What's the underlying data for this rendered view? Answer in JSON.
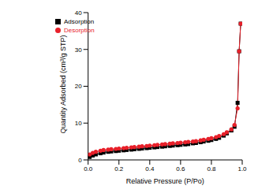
{
  "chart_data": {
    "type": "line",
    "x_label": "Relative Pressure (P/Po)",
    "y_label": "Quantity Adsorbed (cm³/g STP)",
    "x": [
      0.01,
      0.03,
      0.05,
      0.08,
      0.1,
      0.13,
      0.15,
      0.18,
      0.2,
      0.23,
      0.25,
      0.28,
      0.3,
      0.33,
      0.35,
      0.38,
      0.4,
      0.43,
      0.45,
      0.48,
      0.5,
      0.53,
      0.55,
      0.58,
      0.6,
      0.63,
      0.65,
      0.68,
      0.7,
      0.73,
      0.75,
      0.78,
      0.8,
      0.83,
      0.85,
      0.88,
      0.9,
      0.93,
      0.95,
      0.97,
      0.98,
      0.99
    ],
    "series": [
      {
        "name": "Adsorption",
        "color": "#000000",
        "marker": "square",
        "values": [
          0.8,
          1.2,
          1.5,
          1.8,
          2.0,
          2.2,
          2.3,
          2.4,
          2.5,
          2.6,
          2.7,
          2.8,
          2.9,
          3.0,
          3.1,
          3.2,
          3.3,
          3.4,
          3.5,
          3.6,
          3.7,
          3.8,
          3.9,
          4.0,
          4.1,
          4.2,
          4.3,
          4.5,
          4.6,
          4.8,
          5.0,
          5.2,
          5.4,
          5.7,
          6.0,
          6.6,
          7.2,
          8.0,
          9.0,
          15.5,
          29.5,
          37.0
        ]
      },
      {
        "name": "Desorption",
        "color": "#e8202a",
        "marker": "circle",
        "values": [
          1.5,
          1.9,
          2.2,
          2.5,
          2.7,
          2.8,
          2.9,
          3.0,
          3.1,
          3.2,
          3.3,
          3.4,
          3.5,
          3.6,
          3.7,
          3.8,
          3.9,
          4.0,
          4.1,
          4.2,
          4.3,
          4.4,
          4.5,
          4.6,
          4.7,
          4.8,
          4.9,
          5.0,
          5.1,
          5.3,
          5.5,
          5.7,
          5.9,
          6.2,
          6.5,
          7.0,
          7.5,
          8.3,
          9.5,
          14.0,
          29.5,
          37.0
        ]
      }
    ],
    "xlim": [
      0,
      1
    ],
    "xticks": [
      {
        "value": 0,
        "label": "0.0"
      },
      0.2,
      0.4,
      0.6,
      0.8,
      {
        "value": 1,
        "label": "1.0"
      }
    ],
    "ylim": [
      0,
      40
    ],
    "yticks": [
      0,
      10,
      20,
      30,
      40
    ],
    "grid": false,
    "legend": "upper left"
  }
}
